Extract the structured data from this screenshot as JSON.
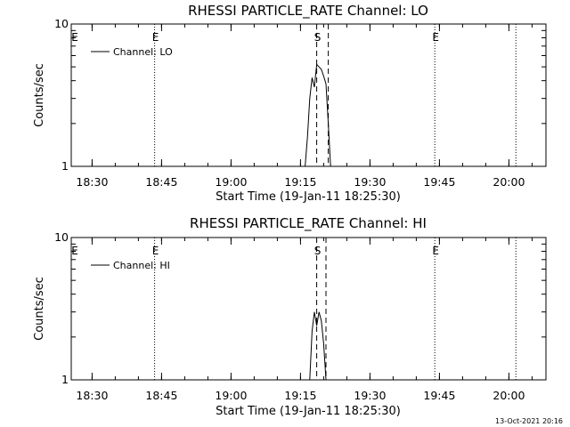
{
  "footer": {
    "timestamp": "13-Oct-2021 20:16"
  },
  "chart_data": [
    {
      "type": "line",
      "title": "RHESSI PARTICLE_RATE Channel: LO",
      "xlabel": "Start Time (19-Jan-11 18:25:30)",
      "ylabel": "Counts/sec",
      "yscale": "log",
      "xlim": [
        "18:25:30",
        "20:08:00"
      ],
      "ylim": [
        1,
        10
      ],
      "x_ticks": [
        "18:30",
        "18:45",
        "19:00",
        "19:15",
        "19:30",
        "19:45",
        "20:00"
      ],
      "y_ticks": [
        "1",
        "10"
      ],
      "legend": {
        "placement": "top-left",
        "entries": [
          "Channel: LO"
        ]
      },
      "series": [
        {
          "name": "Channel: LO",
          "x": [
            "19:16:00",
            "19:16:30",
            "19:17:00",
            "19:17:30",
            "19:18:00",
            "19:18:30",
            "19:19:00",
            "19:19:30",
            "19:20:00",
            "19:20:30",
            "19:21:00",
            "19:21:30"
          ],
          "y": [
            1.0,
            1.6,
            3.0,
            4.2,
            3.6,
            5.2,
            5.0,
            4.8,
            4.3,
            3.8,
            2.0,
            1.0
          ]
        }
      ],
      "markers": [
        {
          "label": "E",
          "time": "18:43:30",
          "line": "dotted"
        },
        {
          "label": "S",
          "time": "19:18:30",
          "line": "dashed"
        },
        {
          "label": "",
          "time": "19:21:00",
          "line": "dashed"
        },
        {
          "label": "E",
          "time": "19:44:00",
          "line": "dotted"
        },
        {
          "label": "",
          "time": "20:01:30",
          "line": "dotted"
        }
      ]
    },
    {
      "type": "line",
      "title": "RHESSI PARTICLE_RATE Channel: HI",
      "xlabel": "Start Time (19-Jan-11 18:25:30)",
      "ylabel": "Counts/sec",
      "yscale": "log",
      "xlim": [
        "18:25:30",
        "20:08:00"
      ],
      "ylim": [
        1,
        10
      ],
      "x_ticks": [
        "18:30",
        "18:45",
        "19:00",
        "19:15",
        "19:30",
        "19:45",
        "20:00"
      ],
      "y_ticks": [
        "1",
        "10"
      ],
      "legend": {
        "placement": "top-left",
        "entries": [
          "Channel: HI"
        ]
      },
      "series": [
        {
          "name": "Channel: HI",
          "x": [
            "19:17:00",
            "19:17:30",
            "19:18:00",
            "19:18:30",
            "19:19:00",
            "19:19:30",
            "19:20:00",
            "19:20:30"
          ],
          "y": [
            1.0,
            2.2,
            3.0,
            2.4,
            3.0,
            2.6,
            1.8,
            1.0
          ]
        }
      ],
      "markers": [
        {
          "label": "E",
          "time": "18:43:30",
          "line": "dotted"
        },
        {
          "label": "S",
          "time": "19:18:30",
          "line": "dashed"
        },
        {
          "label": "",
          "time": "19:20:30",
          "line": "dashed"
        },
        {
          "label": "E",
          "time": "19:44:00",
          "line": "dotted"
        },
        {
          "label": "",
          "time": "20:01:30",
          "line": "dotted"
        }
      ]
    }
  ]
}
